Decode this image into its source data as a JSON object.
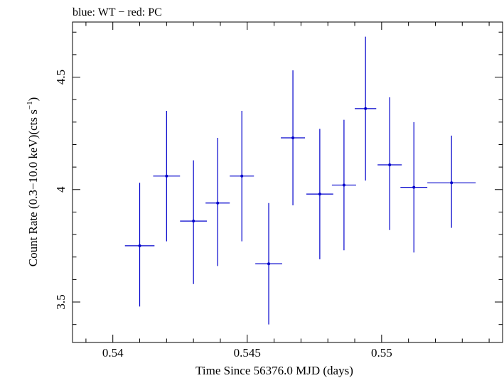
{
  "chart_data": {
    "type": "scatter",
    "title": "blue: WT − red: PC",
    "xlabel": "Time Since 56376.0 MJD (days)",
    "ylabel_main": "Count Rate (0.3−10.0 keV)(cts s",
    "ylabel_sup": "−1",
    "ylabel_end": ")",
    "xlim": [
      0.5385,
      0.5545
    ],
    "ylim": [
      3.32,
      4.745
    ],
    "x_ticks": [
      {
        "value": 0.54,
        "label": "0.54"
      },
      {
        "value": 0.545,
        "label": "0.545"
      },
      {
        "value": 0.55,
        "label": "0.55"
      }
    ],
    "x_minor_step": 0.001,
    "y_ticks": [
      {
        "value": 3.5,
        "label": "3.5"
      },
      {
        "value": 4.0,
        "label": "4"
      },
      {
        "value": 4.5,
        "label": "4.5"
      }
    ],
    "y_minor_step": 0.1,
    "grid": false,
    "series": [
      {
        "color": "#0000cc",
        "points": [
          {
            "x": 0.541,
            "xerr": 0.00055,
            "y": 3.75,
            "ylo": 3.48,
            "yhi": 4.03
          },
          {
            "x": 0.542,
            "xerr": 0.0005,
            "y": 4.06,
            "ylo": 3.77,
            "yhi": 4.35
          },
          {
            "x": 0.543,
            "xerr": 0.0005,
            "y": 3.86,
            "ylo": 3.58,
            "yhi": 4.13
          },
          {
            "x": 0.5439,
            "xerr": 0.00045,
            "y": 3.94,
            "ylo": 3.66,
            "yhi": 4.23
          },
          {
            "x": 0.5448,
            "xerr": 0.00045,
            "y": 4.06,
            "ylo": 3.77,
            "yhi": 4.35
          },
          {
            "x": 0.5458,
            "xerr": 0.0005,
            "y": 3.67,
            "ylo": 3.4,
            "yhi": 3.94
          },
          {
            "x": 0.5467,
            "xerr": 0.00045,
            "y": 4.23,
            "ylo": 3.93,
            "yhi": 4.53
          },
          {
            "x": 0.5477,
            "xerr": 0.0005,
            "y": 3.98,
            "ylo": 3.69,
            "yhi": 4.27
          },
          {
            "x": 0.5486,
            "xerr": 0.00045,
            "y": 4.02,
            "ylo": 3.73,
            "yhi": 4.31
          },
          {
            "x": 0.5494,
            "xerr": 0.0004,
            "y": 4.36,
            "ylo": 4.04,
            "yhi": 4.68
          },
          {
            "x": 0.5503,
            "xerr": 0.00045,
            "y": 4.11,
            "ylo": 3.82,
            "yhi": 4.41
          },
          {
            "x": 0.5512,
            "xerr": 0.0005,
            "y": 4.01,
            "ylo": 3.72,
            "yhi": 4.3
          },
          {
            "x": 0.5526,
            "xerr": 0.0009,
            "y": 4.03,
            "ylo": 3.83,
            "yhi": 4.24
          }
        ]
      }
    ]
  }
}
